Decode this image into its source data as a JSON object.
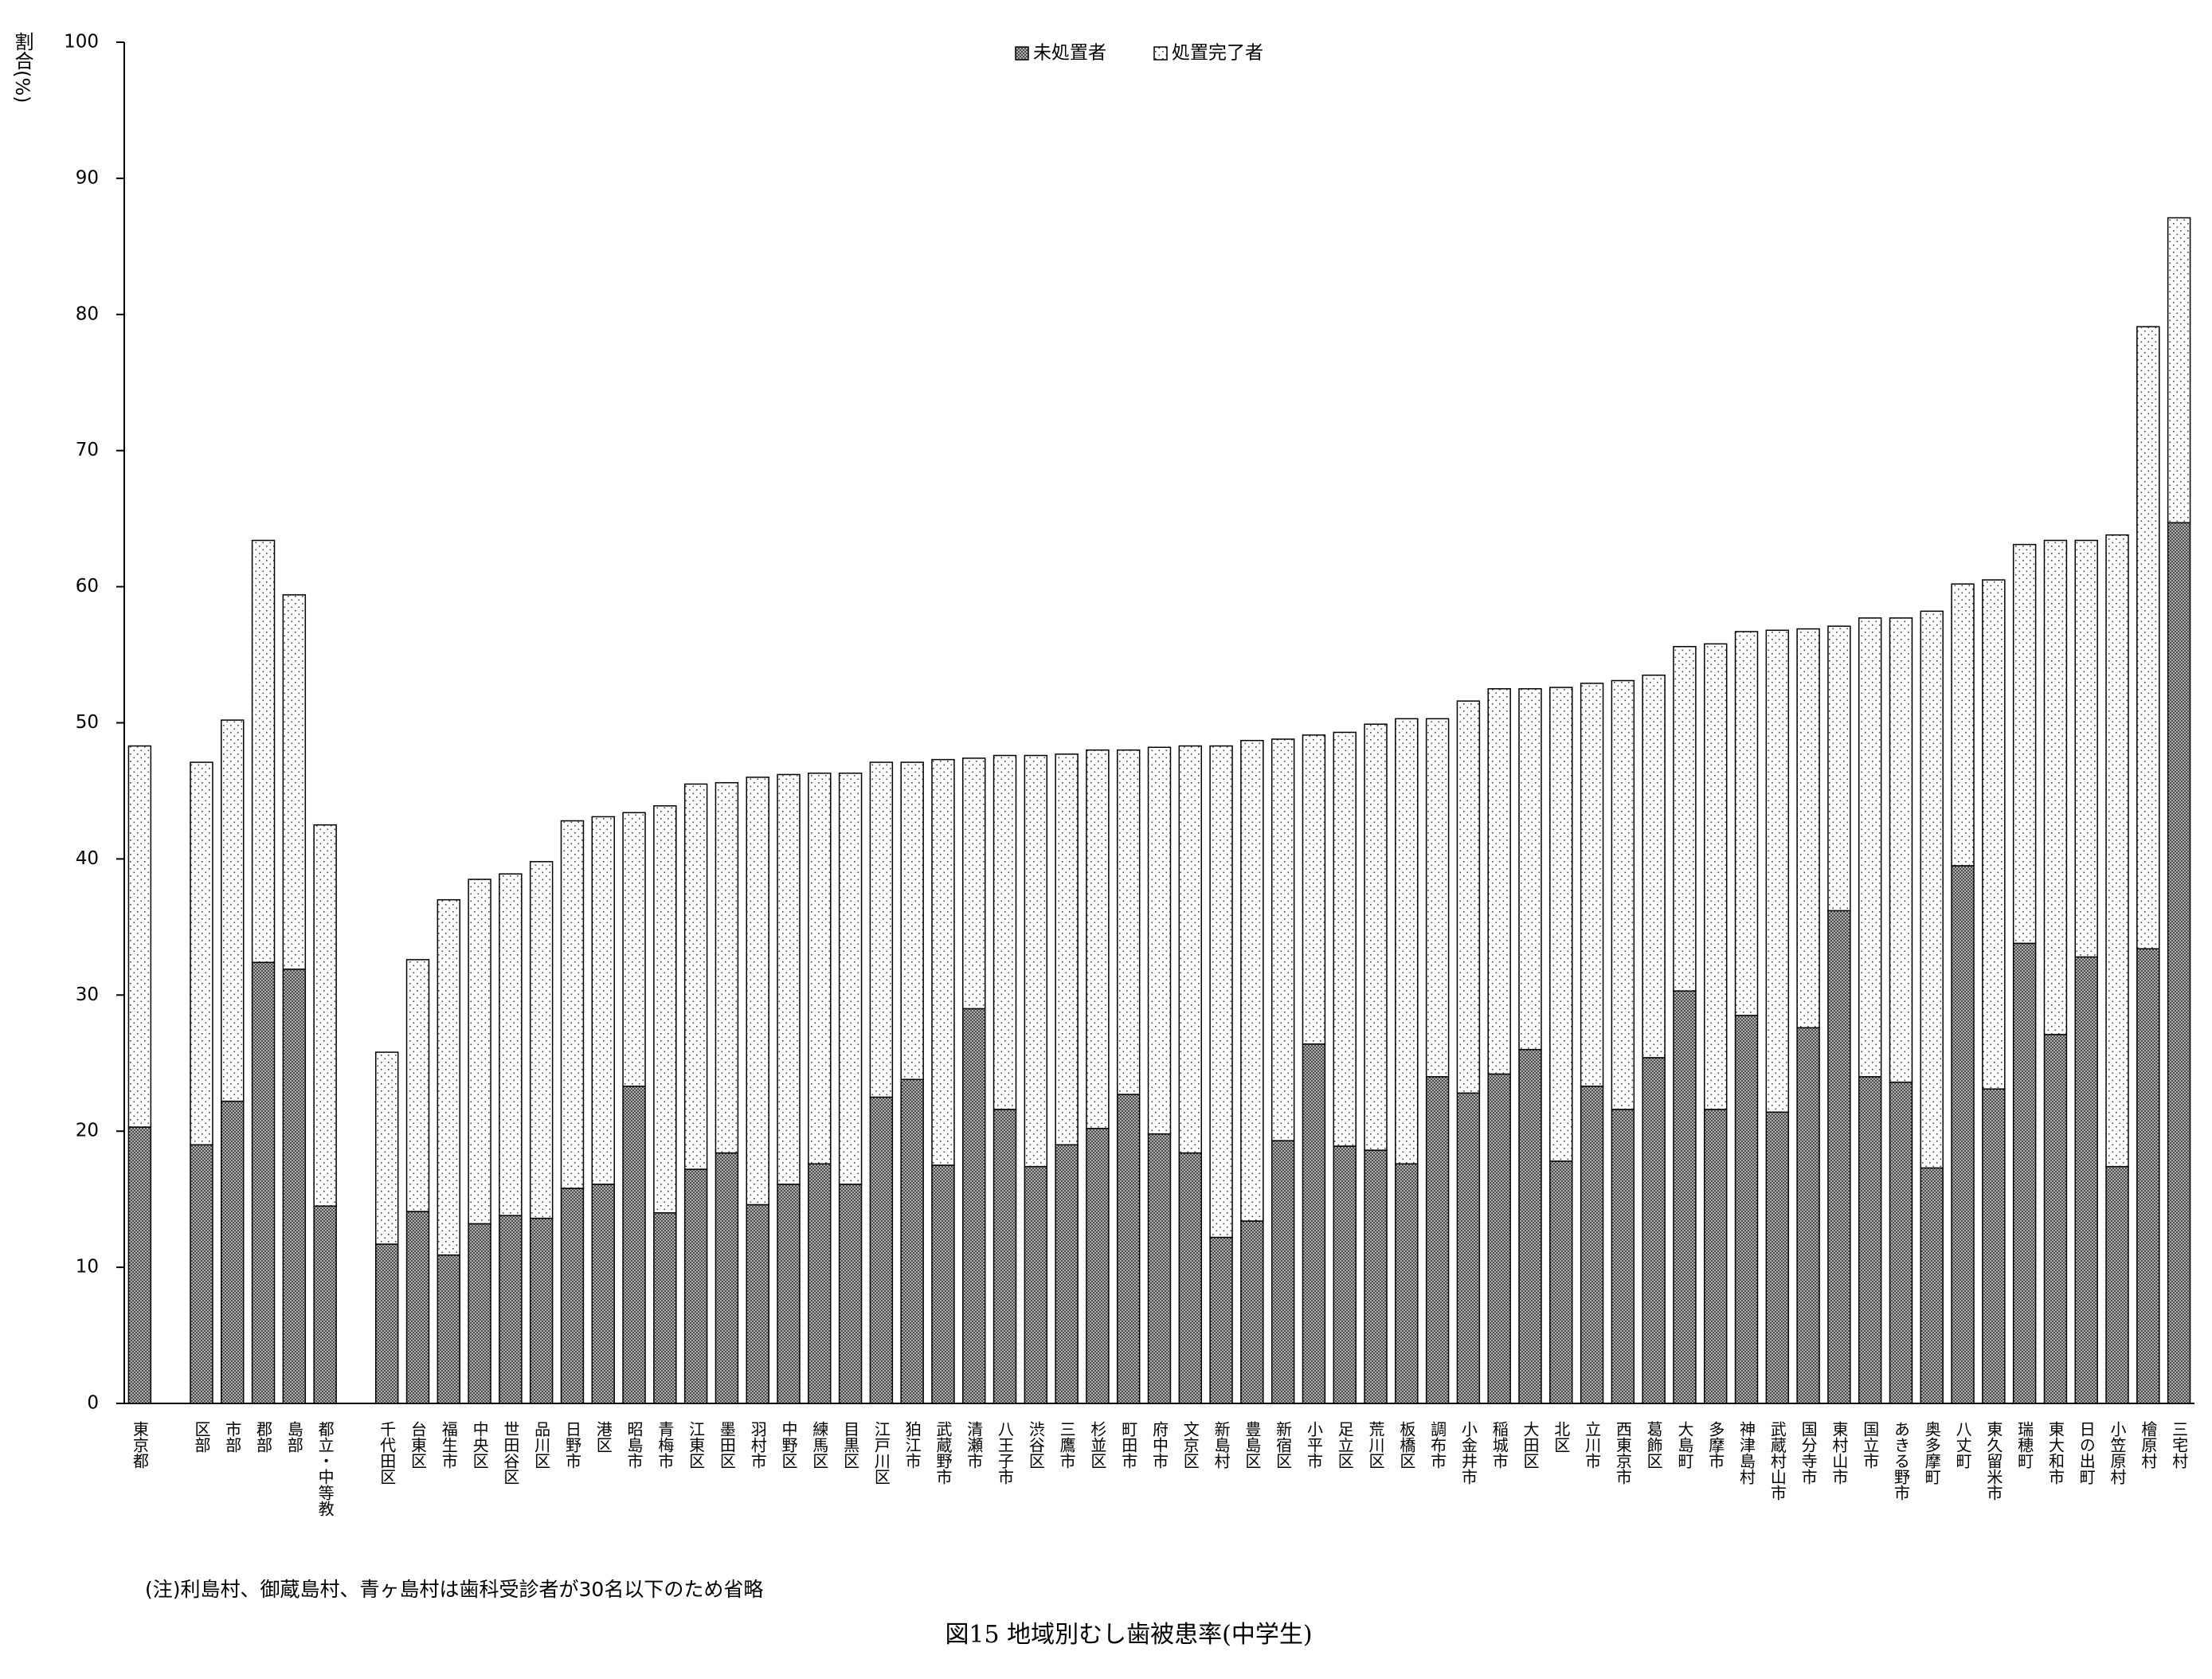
{
  "chart_data": {
    "type": "stacked_bar",
    "title": "図15 地域別むし歯被患率(中学生)",
    "y_label": "割合(%)",
    "note": "(注)利島村、御蔵島村、青ヶ島村は歯科受診者が30名以下のため省略",
    "categories": [
      "東京都",
      null,
      "区部",
      "市部",
      "郡部",
      "島部",
      "都立・中等教",
      null,
      "千代田区",
      "台東区",
      "福生市",
      "中央区",
      "世田谷区",
      "品川区",
      "日野市",
      "港区",
      "昭島市",
      "青梅市",
      "江東区",
      "墨田区",
      "羽村市",
      "中野区",
      "練馬区",
      "目黒区",
      "江戸川区",
      "狛江市",
      "武蔵野市",
      "清瀬市",
      "八王子市",
      "渋谷区",
      "三鷹市",
      "杉並区",
      "町田市",
      "府中市",
      "文京区",
      "新島村",
      "豊島区",
      "新宿区",
      "小平市",
      "足立区",
      "荒川区",
      "板橋区",
      "調布市",
      "小金井市",
      "稲城市",
      "大田区",
      "北区",
      "立川市",
      "西東京市",
      "葛飾区",
      "大島町",
      "多摩市",
      "神津島村",
      "武蔵村山市",
      "国分寺市",
      "東村山市",
      "国立市",
      "あきる野市",
      "奥多摩町",
      "八丈町",
      "東久留米市",
      "瑞穂町",
      "東大和市",
      "日の出町",
      "小笠原村",
      "檜原村",
      "三宅村"
    ],
    "series": [
      {
        "name": "未処置者",
        "color": "#4d4d4d",
        "pattern": "crosshatch",
        "values": [
          20.3,
          null,
          19.0,
          22.2,
          32.4,
          31.9,
          14.5,
          null,
          11.7,
          14.1,
          10.9,
          13.2,
          13.8,
          13.6,
          15.8,
          16.1,
          23.3,
          14.0,
          17.2,
          18.4,
          14.6,
          16.1,
          17.6,
          16.1,
          22.5,
          23.8,
          17.5,
          29.0,
          21.6,
          17.4,
          19.0,
          20.2,
          22.7,
          19.8,
          18.4,
          12.2,
          13.4,
          19.3,
          26.4,
          18.9,
          18.6,
          17.6,
          24.0,
          22.8,
          24.2,
          26.0,
          17.8,
          23.3,
          21.6,
          25.4,
          30.3,
          21.6,
          28.5,
          21.4,
          27.6,
          36.2,
          24.0,
          23.6,
          17.3,
          39.5,
          23.1,
          33.8,
          27.1,
          32.8,
          17.4,
          33.4,
          64.7
        ]
      },
      {
        "name": "処置完了者",
        "color": "#ffffff",
        "pattern": "dots",
        "values": [
          28.0,
          null,
          28.1,
          28.0,
          31.0,
          27.5,
          28.0,
          null,
          14.1,
          18.5,
          26.1,
          25.3,
          25.1,
          26.2,
          27.0,
          27.0,
          20.1,
          29.9,
          28.3,
          27.2,
          31.4,
          30.1,
          28.7,
          30.2,
          24.6,
          23.3,
          29.8,
          18.4,
          26.0,
          30.2,
          28.7,
          27.8,
          25.3,
          28.4,
          29.9,
          36.1,
          35.3,
          29.5,
          22.7,
          30.4,
          31.3,
          32.7,
          26.3,
          28.8,
          28.3,
          26.5,
          34.8,
          29.6,
          31.5,
          28.1,
          25.3,
          34.2,
          28.2,
          35.4,
          29.3,
          20.9,
          33.7,
          34.1,
          40.9,
          20.7,
          37.4,
          29.3,
          36.3,
          30.6,
          46.4,
          45.7,
          22.4
        ]
      }
    ],
    "ylim": [
      0,
      100
    ],
    "yticks": [
      0,
      10,
      20,
      30,
      40,
      50,
      60,
      70,
      80,
      90,
      100
    ],
    "grid": false,
    "legend": "top"
  }
}
